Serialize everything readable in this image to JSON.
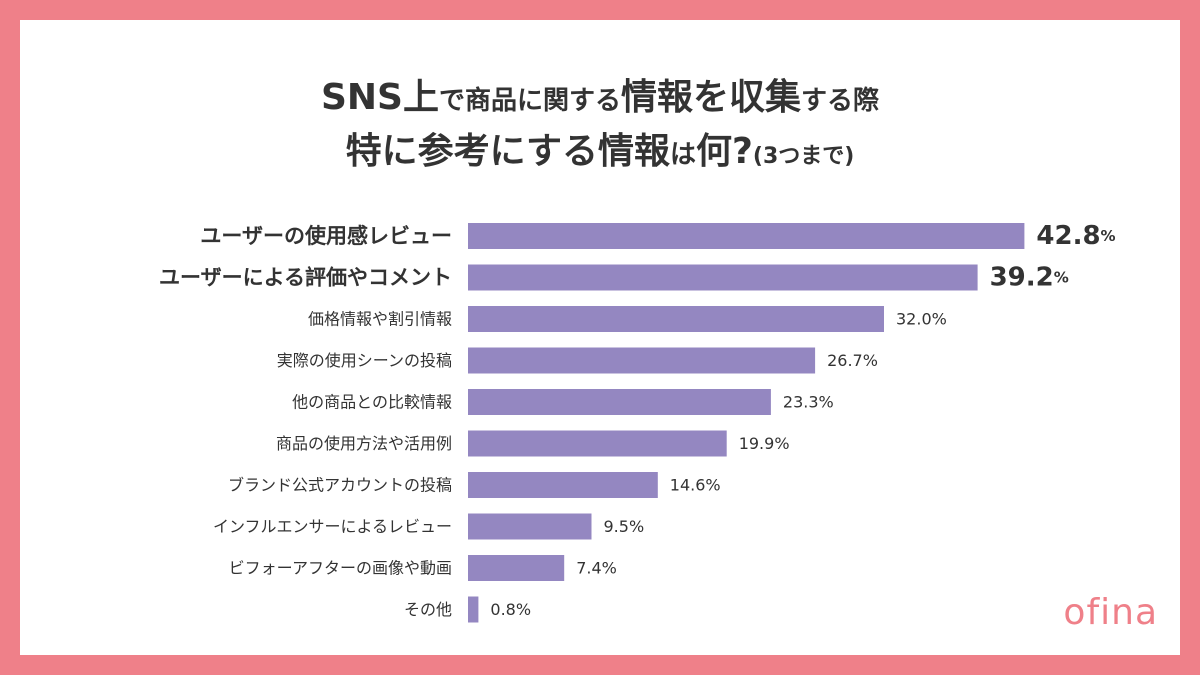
{
  "title": {
    "line1": [
      {
        "text": "SNS上",
        "size": "big"
      },
      {
        "text": "で商品に関する",
        "size": "small"
      },
      {
        "text": "情報を収集",
        "size": "big"
      },
      {
        "text": "する際",
        "size": "small"
      }
    ],
    "line2": [
      {
        "text": "特に参考にする情報",
        "size": "big"
      },
      {
        "text": "は",
        "size": "small"
      },
      {
        "text": "何?",
        "size": "big"
      },
      {
        "text": "(3つまで)",
        "size": "tiny"
      }
    ]
  },
  "chart_data": {
    "type": "bar",
    "orientation": "horizontal",
    "categories": [
      "ユーザーの使用感レビュー",
      "ユーザーによる評価やコメント",
      "価格情報や割引情報",
      "実際の使用シーンの投稿",
      "他の商品との比較情報",
      "商品の使用方法や活用例",
      "ブランド公式アカウントの投稿",
      "インフルエンサーによるレビュー",
      "ビフォーアフターの画像や動画",
      "その他"
    ],
    "values": [
      42.8,
      39.2,
      32.0,
      26.7,
      23.3,
      19.9,
      14.6,
      9.5,
      7.4,
      0.8
    ],
    "value_labels": [
      "42.8",
      "39.2",
      "32.0%",
      "26.7%",
      "23.3%",
      "19.9%",
      "14.6%",
      "9.5%",
      "7.4%",
      "0.8%"
    ],
    "highlight_suffix": "%",
    "highlighted": [
      true,
      true,
      false,
      false,
      false,
      false,
      false,
      false,
      false,
      false
    ],
    "unit": "%",
    "xlim": [
      0,
      44
    ],
    "bar_color": "#9487c1"
  },
  "logo": "ofina",
  "colors": {
    "background": "#ef8089",
    "card": "#ffffff",
    "text": "#333333",
    "bar": "#9487c1",
    "logo": "#ef8089"
  }
}
